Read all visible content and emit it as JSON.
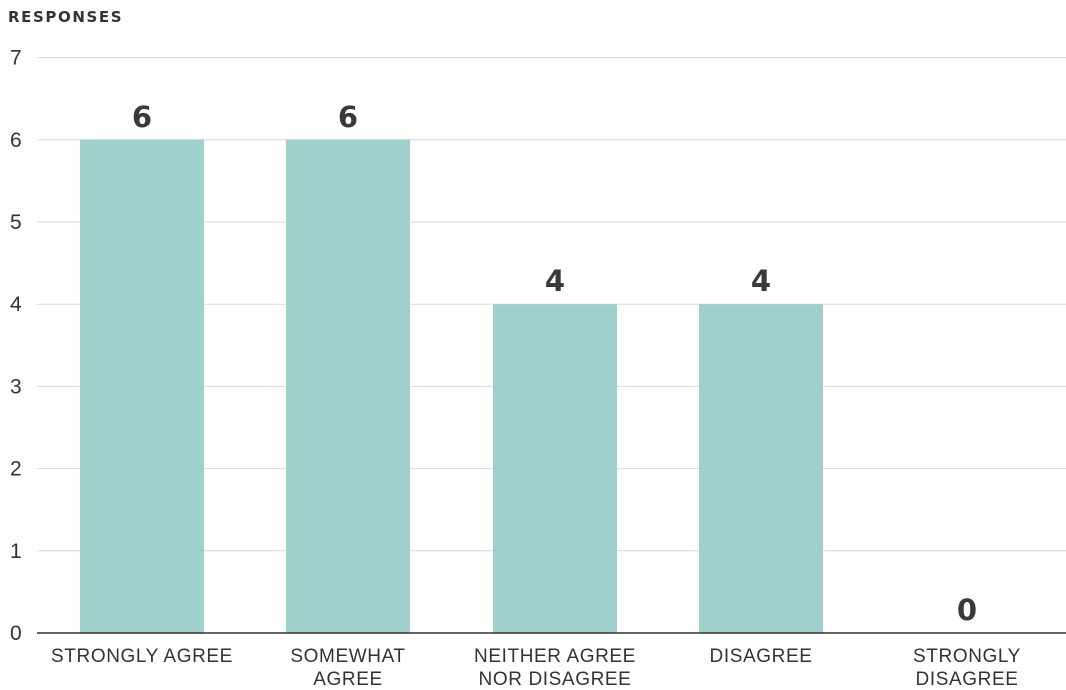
{
  "chart_data": {
    "type": "bar",
    "ylabel": "RESPONSES",
    "xlabel": "",
    "title": "",
    "categories": [
      [
        "STRONGLY AGREE"
      ],
      [
        "SOMEWHAT",
        "AGREE"
      ],
      [
        "NEITHER AGREE",
        "NOR DISAGREE"
      ],
      [
        "DISAGREE"
      ],
      [
        "STRONGLY",
        "DISAGREE"
      ]
    ],
    "values": [
      6,
      6,
      4,
      4,
      0
    ],
    "data_labels": [
      "6",
      "6",
      "4",
      "4",
      "0"
    ],
    "ylim": [
      0,
      7
    ],
    "yticks": [
      "0",
      "1",
      "2",
      "3",
      "4",
      "5",
      "6",
      "7"
    ],
    "grid": true,
    "bar_color": "#a0d0cb"
  }
}
